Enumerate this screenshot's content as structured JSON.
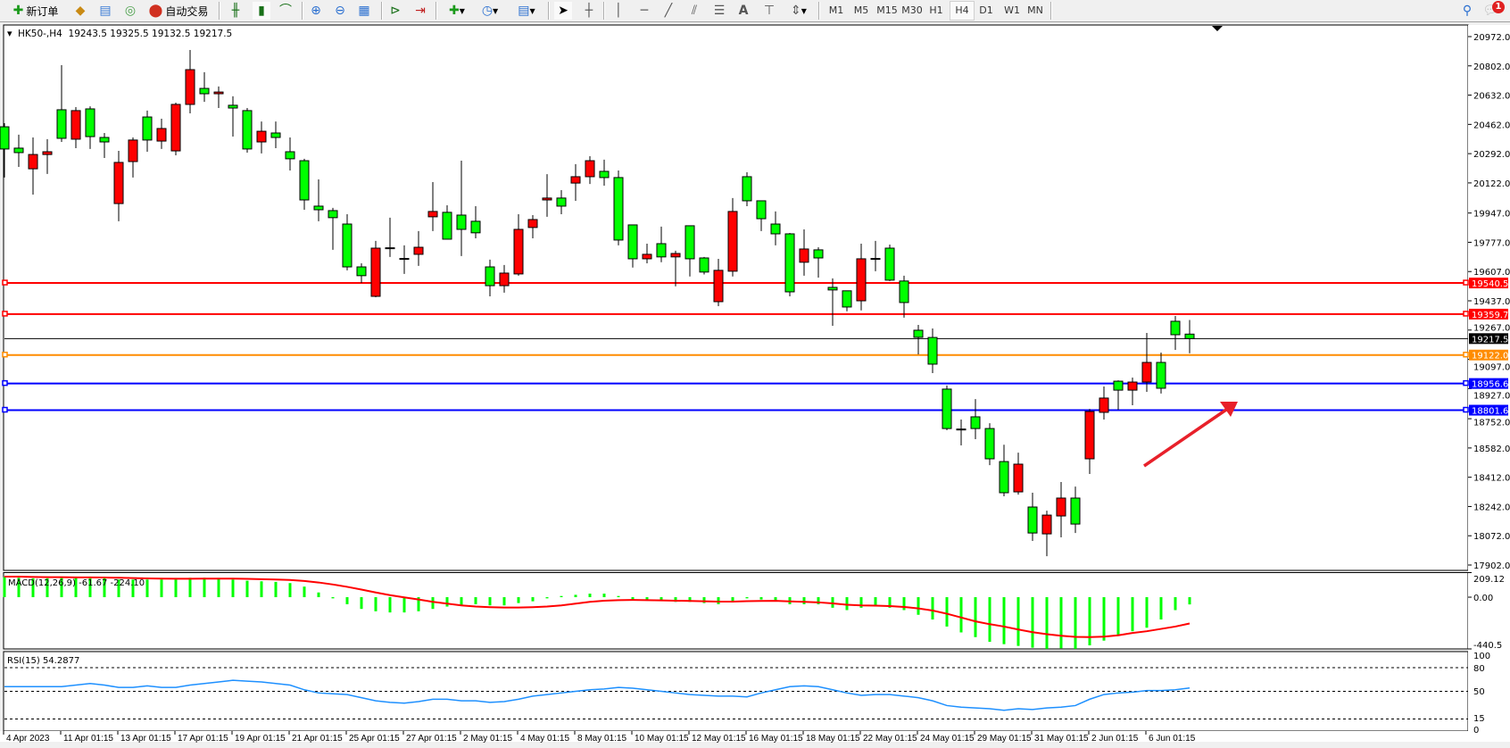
{
  "toolbar": {
    "new_order_label": "新订单",
    "auto_trading_label": "自动交易",
    "icons": [
      "new-order-icon",
      "market-watch-icon",
      "navigator-icon",
      "signals-icon",
      "auto-trading-icon",
      "bar-chart-icon",
      "candlestick-icon",
      "line-chart-icon",
      "zoom-in-icon",
      "zoom-out-icon",
      "tile-windows-icon",
      "chart-shift-icon",
      "autoscroll-icon",
      "new-chart-icon",
      "periods-icon",
      "indicators-icon",
      "cursor-icon",
      "crosshair-icon",
      "vertical-line-icon",
      "horizontal-line-icon",
      "trendline-icon",
      "fibonacci-icon",
      "fibo-channel-icon",
      "text-icon",
      "text-label-icon",
      "arrows-icon",
      "search-icon",
      "chat-icon"
    ],
    "timeframes": [
      "M1",
      "M5",
      "M15",
      "M30",
      "H1",
      "H4",
      "D1",
      "W1",
      "MN"
    ],
    "active_timeframe": "H4",
    "notification_count": "1"
  },
  "chart": {
    "symbol_header": "HK50-,H4  19243.5 19325.5 19132.5 19217.5",
    "bull_color": "#ff0000",
    "bear_color": "#00ff00",
    "price_ticks": [
      "20972.0",
      "20802.0",
      "20632.0",
      "20462.0",
      "20292.0",
      "20122.0",
      "19947.0",
      "19777.0",
      "19607.0",
      "19437.0",
      "19267.0",
      "19097.0",
      "18927.0",
      "18752.0",
      "18582.0",
      "18412.0",
      "18242.0",
      "18072.0",
      "17902.0"
    ],
    "levels": [
      {
        "price": 19540.5,
        "label": "19540.5",
        "color": "#ff0000"
      },
      {
        "price": 19359.7,
        "label": "19359.7",
        "color": "#ff0000"
      },
      {
        "price": 19217.5,
        "label": "19217.5",
        "color": "#000000"
      },
      {
        "price": 19122.0,
        "label": "19122.0",
        "color": "#ff8c00"
      },
      {
        "price": 18956.6,
        "label": "18956.6",
        "color": "#0000ff"
      },
      {
        "price": 18801.6,
        "label": "18801.6",
        "color": "#0000ff"
      }
    ],
    "annotation_arrow_color": "#e8202a",
    "time_labels": [
      "4 Apr 2023",
      "11 Apr 01:15",
      "13 Apr 01:15",
      "17 Apr 01:15",
      "19 Apr 01:15",
      "21 Apr 01:15",
      "25 Apr 01:15",
      "27 Apr 01:15",
      "2 May 01:15",
      "4 May 01:15",
      "8 May 01:15",
      "10 May 01:15",
      "12 May 01:15",
      "16 May 01:15",
      "18 May 01:15",
      "22 May 01:15",
      "24 May 01:15",
      "29 May 01:15",
      "31 May 01:15",
      "2 Jun 01:15",
      "6 Jun 01:15"
    ]
  },
  "macd": {
    "label": "MACD(12,26,9) -61.67 -224.10",
    "ticks": [
      "209.12",
      "0.00",
      "-440.5"
    ]
  },
  "rsi": {
    "label": "RSI(15) 54.2877",
    "ticks": [
      "100",
      "80",
      "50",
      "15",
      "0"
    ]
  },
  "chart_data": {
    "type": "candlestick",
    "symbol": "HK50-",
    "timeframe": "H4",
    "ohlc": [
      [
        20448,
        20469,
        20153,
        20319
      ],
      [
        20324,
        20402,
        20215,
        20298
      ],
      [
        20204,
        20386,
        20054,
        20287
      ],
      [
        20287,
        20376,
        20174,
        20303
      ],
      [
        20547,
        20806,
        20360,
        20381
      ],
      [
        20376,
        20562,
        20324,
        20542
      ],
      [
        20552,
        20567,
        20319,
        20391
      ],
      [
        20386,
        20412,
        20267,
        20360
      ],
      [
        20002,
        20308,
        19899,
        20241
      ],
      [
        20246,
        20386,
        20153,
        20371
      ],
      [
        20505,
        20542,
        20303,
        20371
      ],
      [
        20365,
        20495,
        20319,
        20438
      ],
      [
        20308,
        20588,
        20282,
        20578
      ],
      [
        20578,
        20894,
        20526,
        20780
      ],
      [
        20671,
        20765,
        20593,
        20640
      ],
      [
        20640,
        20682,
        20557,
        20650
      ],
      [
        20573,
        20625,
        20391,
        20557
      ],
      [
        20542,
        20557,
        20298,
        20319
      ],
      [
        20360,
        20479,
        20293,
        20422
      ],
      [
        20412,
        20479,
        20324,
        20386
      ],
      [
        20303,
        20386,
        20194,
        20262
      ],
      [
        20251,
        20262,
        19966,
        20023
      ],
      [
        19987,
        20142,
        19899,
        19966
      ],
      [
        19961,
        19977,
        19733,
        19920
      ],
      [
        19883,
        19940,
        19614,
        19634
      ],
      [
        19634,
        19655,
        19541,
        19583
      ],
      [
        19463,
        19785,
        19458,
        19743
      ],
      [
        19743,
        19920,
        19692,
        19745
      ],
      [
        19681,
        19759,
        19593,
        19683
      ],
      [
        19707,
        19842,
        19640,
        19748
      ],
      [
        19925,
        20127,
        19842,
        19956
      ],
      [
        19951,
        19992,
        19795,
        19795
      ],
      [
        19935,
        20251,
        19697,
        19852
      ],
      [
        19899,
        19987,
        19800,
        19832
      ],
      [
        19634,
        19676,
        19463,
        19525
      ],
      [
        19525,
        19645,
        19484,
        19598
      ],
      [
        19593,
        19940,
        19583,
        19852
      ],
      [
        19863,
        19935,
        19800,
        19909
      ],
      [
        20023,
        20173,
        19925,
        20034
      ],
      [
        20034,
        20080,
        19940,
        19987
      ],
      [
        20121,
        20231,
        20018,
        20158
      ],
      [
        20158,
        20277,
        20116,
        20251
      ],
      [
        20189,
        20257,
        20106,
        20153
      ],
      [
        20153,
        20194,
        19759,
        19790
      ],
      [
        19878,
        19878,
        19630,
        19681
      ],
      [
        19681,
        19769,
        19655,
        19707
      ],
      [
        19769,
        19868,
        19661,
        19692
      ],
      [
        19692,
        19728,
        19521,
        19712
      ],
      [
        19873,
        19873,
        19578,
        19681
      ],
      [
        19686,
        19692,
        19590,
        19604
      ],
      [
        19432,
        19681,
        19406,
        19614
      ],
      [
        19609,
        20034,
        19578,
        19956
      ],
      [
        20158,
        20184,
        19987,
        20018
      ],
      [
        20018,
        20018,
        19842,
        19914
      ],
      [
        19883,
        19956,
        19759,
        19826
      ],
      [
        19826,
        19831,
        19463,
        19489
      ],
      [
        19661,
        19852,
        19583,
        19738
      ],
      [
        19733,
        19748,
        19572,
        19686
      ],
      [
        19515,
        19567,
        19292,
        19500
      ],
      [
        19495,
        19495,
        19376,
        19401
      ],
      [
        19437,
        19769,
        19381,
        19681
      ],
      [
        19681,
        19785,
        19609,
        19683
      ],
      [
        19743,
        19764,
        19552,
        19557
      ],
      [
        19552,
        19583,
        19339,
        19427
      ],
      [
        19266,
        19297,
        19126,
        19225
      ],
      [
        19224,
        19276,
        19017,
        19069
      ],
      [
        18924,
        18945,
        18685,
        18695
      ],
      [
        18690,
        18747,
        18597,
        18692
      ],
      [
        18763,
        18866,
        18633,
        18695
      ],
      [
        18695,
        18726,
        18482,
        18519
      ],
      [
        18503,
        18601,
        18301,
        18322
      ],
      [
        18327,
        18555,
        18311,
        18488
      ],
      [
        18239,
        18322,
        18042,
        18088
      ],
      [
        18083,
        18218,
        17953,
        18192
      ],
      [
        18187,
        18384,
        18063,
        18291
      ],
      [
        18291,
        18358,
        18088,
        18140
      ],
      [
        18519,
        18809,
        18431,
        18794
      ],
      [
        18789,
        18939,
        18747,
        18872
      ],
      [
        18970,
        18975,
        18804,
        18918
      ],
      [
        18918,
        18991,
        18830,
        18965
      ],
      [
        18965,
        19250,
        18908,
        19079
      ],
      [
        19079,
        19136,
        18898,
        18929
      ],
      [
        19318,
        19349,
        19152,
        19240
      ],
      [
        19243.5,
        19325.5,
        19132.5,
        19217.5
      ]
    ],
    "last": {
      "open": 19243.5,
      "high": 19325.5,
      "low": 19132.5,
      "close": 19217.5
    },
    "price_range": [
      17902.0,
      20972.0
    ],
    "macd_main": [
      170,
      165,
      160,
      160,
      165,
      165,
      160,
      160,
      150,
      150,
      150,
      150,
      150,
      165,
      165,
      160,
      150,
      140,
      135,
      130,
      120,
      90,
      40,
      -10,
      -60,
      -100,
      -120,
      -130,
      -130,
      -120,
      -100,
      -80,
      -70,
      -60,
      -70,
      -70,
      -50,
      -35,
      -10,
      10,
      20,
      30,
      30,
      10,
      -20,
      -30,
      -30,
      -40,
      -40,
      -50,
      -60,
      -40,
      -10,
      -20,
      -30,
      -60,
      -60,
      -60,
      -90,
      -110,
      -90,
      -80,
      -90,
      -110,
      -150,
      -190,
      -250,
      -300,
      -340,
      -380,
      -400,
      -415,
      -430,
      -440,
      -435,
      -440,
      -410,
      -370,
      -330,
      -290,
      -260,
      -190,
      -110,
      -61.67
    ],
    "macd_signal": [
      175,
      175,
      172,
      170,
      170,
      168,
      168,
      167,
      165,
      163,
      160,
      158,
      157,
      157,
      158,
      158,
      158,
      156,
      153,
      150,
      146,
      138,
      125,
      108,
      88,
      65,
      40,
      17,
      -2,
      -20,
      -40,
      -55,
      -70,
      -80,
      -85,
      -88,
      -88,
      -85,
      -80,
      -70,
      -55,
      -40,
      -30,
      -25,
      -24,
      -25,
      -27,
      -30,
      -32,
      -35,
      -38,
      -38,
      -34,
      -32,
      -31,
      -36,
      -40,
      -44,
      -53,
      -64,
      -70,
      -72,
      -76,
      -83,
      -96,
      -114,
      -141,
      -173,
      -206,
      -230,
      -250,
      -275,
      -298,
      -315,
      -328,
      -338,
      -340,
      -336,
      -325,
      -305,
      -290,
      -270,
      -250,
      -224.1
    ],
    "macd_range": [
      -440.5,
      209.12
    ],
    "rsi": [
      56,
      56,
      56,
      56,
      56,
      58,
      60,
      58,
      55,
      55,
      57,
      55,
      55,
      58,
      60,
      62,
      64,
      63,
      62,
      60,
      58,
      52,
      48,
      47,
      46,
      42,
      38,
      36,
      35,
      37,
      40,
      40,
      38,
      38,
      36,
      37,
      40,
      44,
      46,
      48,
      50,
      52,
      53,
      55,
      54,
      52,
      50,
      48,
      46,
      45,
      44,
      44,
      43,
      48,
      52,
      56,
      57,
      56,
      52,
      48,
      45,
      46,
      46,
      44,
      42,
      38,
      32,
      30,
      29,
      28,
      26,
      28,
      27,
      29,
      30,
      32,
      40,
      46,
      48,
      49,
      51,
      51,
      52,
      54.2877
    ],
    "rsi_levels": [
      80,
      50,
      15
    ],
    "rsi_color": "#1e90ff"
  }
}
